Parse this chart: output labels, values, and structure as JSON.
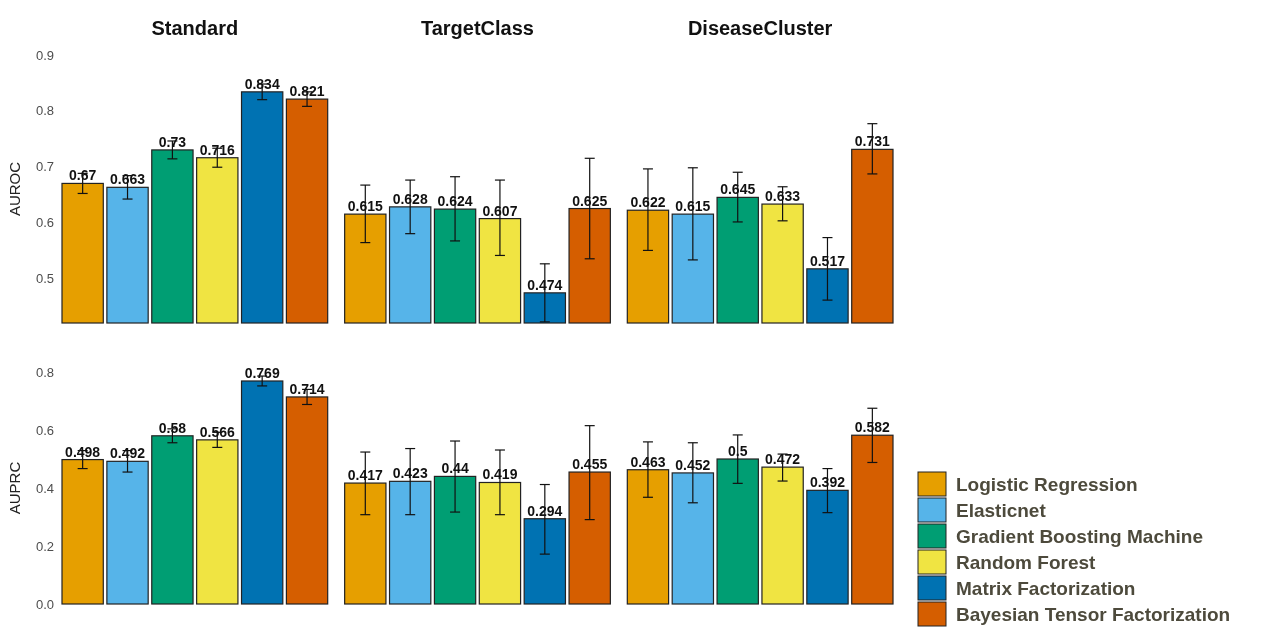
{
  "chart_data": [
    {
      "type": "bar",
      "ylabel": "AUROC",
      "categories": [
        "Standard",
        "TargetClass",
        "DiseaseCluster"
      ],
      "ylim": [
        0.42,
        0.9
      ],
      "yticks": [
        0.5,
        0.6,
        0.7,
        0.8,
        0.9
      ],
      "data_labels": true,
      "series": [
        {
          "color": "#e69f00",
          "values": [
            0.67,
            0.615,
            0.622
          ],
          "errors": [
            [
              0.652,
              0.688
            ],
            [
              0.564,
              0.667
            ],
            [
              0.55,
              0.696
            ]
          ]
        },
        {
          "color": "#56b4e9",
          "values": [
            0.663,
            0.628,
            0.615
          ],
          "errors": [
            [
              0.642,
              0.684
            ],
            [
              0.58,
              0.676
            ],
            [
              0.533,
              0.698
            ]
          ]
        },
        {
          "color": "#009e73",
          "values": [
            0.73,
            0.624,
            0.645
          ],
          "errors": [
            [
              0.714,
              0.746
            ],
            [
              0.567,
              0.682
            ],
            [
              0.601,
              0.69
            ]
          ]
        },
        {
          "color": "#f0e442",
          "values": [
            0.716,
            0.607,
            0.633
          ],
          "errors": [
            [
              0.699,
              0.733
            ],
            [
              0.541,
              0.676
            ],
            [
              0.603,
              0.664
            ]
          ]
        },
        {
          "color": "#0072b2",
          "values": [
            0.834,
            0.474,
            0.517
          ],
          "errors": [
            [
              0.82,
              0.848
            ],
            [
              0.422,
              0.526
            ],
            [
              0.461,
              0.573
            ]
          ]
        },
        {
          "color": "#d55e00",
          "values": [
            0.821,
            0.625,
            0.731
          ],
          "errors": [
            [
              0.808,
              0.834
            ],
            [
              0.535,
              0.715
            ],
            [
              0.687,
              0.777
            ]
          ]
        }
      ]
    },
    {
      "type": "bar",
      "ylabel": "AUPRC",
      "categories": [
        null,
        null,
        null
      ],
      "ylim": [
        0,
        0.8
      ],
      "yticks": [
        {
          "value": 0,
          "label": "0.0"
        },
        0.2,
        0.4,
        0.6,
        0.8
      ],
      "data_labels": true,
      "legend": "right",
      "series": [
        {
          "name": "Logistic Regression",
          "color": "#e69f00",
          "values": [
            0.498,
            0.417,
            0.463
          ],
          "errors": [
            [
              0.467,
              0.529
            ],
            [
              0.308,
              0.524
            ],
            [
              0.368,
              0.559
            ]
          ]
        },
        {
          "name": "Elasticnet",
          "color": "#56b4e9",
          "values": [
            0.492,
            0.423,
            0.452
          ],
          "errors": [
            [
              0.455,
              0.529
            ],
            [
              0.308,
              0.536
            ],
            [
              0.349,
              0.556
            ]
          ]
        },
        {
          "name": "Gradient Boosting Machine",
          "color": "#009e73",
          "values": [
            0.58,
            0.44,
            0.5
          ],
          "errors": [
            [
              0.556,
              0.604
            ],
            [
              0.317,
              0.562
            ],
            [
              0.416,
              0.583
            ]
          ]
        },
        {
          "name": "Random Forest",
          "color": "#f0e442",
          "values": [
            0.566,
            0.419,
            0.472
          ],
          "errors": [
            [
              0.54,
              0.592
            ],
            [
              0.308,
              0.531
            ],
            [
              0.424,
              0.517
            ]
          ]
        },
        {
          "name": "Matrix Factorization",
          "color": "#0072b2",
          "values": [
            0.769,
            0.294,
            0.392
          ],
          "errors": [
            [
              0.752,
              0.786
            ],
            [
              0.172,
              0.412
            ],
            [
              0.315,
              0.467
            ]
          ]
        },
        {
          "name": "Bayesian Tensor Factorization",
          "color": "#d55e00",
          "values": [
            0.714,
            0.455,
            0.582
          ],
          "errors": [
            [
              0.688,
              0.74
            ],
            [
              0.291,
              0.615
            ],
            [
              0.488,
              0.675
            ]
          ]
        }
      ]
    }
  ]
}
